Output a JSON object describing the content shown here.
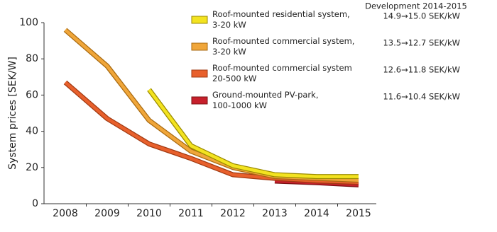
{
  "chart_data": {
    "type": "line",
    "y_label": "System prices [SEK/W]",
    "legend_header": "Development 2014-2015",
    "categories": [
      "2008",
      "2009",
      "2010",
      "2011",
      "2012",
      "2013",
      "2014",
      "2015"
    ],
    "ylim": [
      0,
      100
    ],
    "yticks": [
      0,
      20,
      40,
      60,
      80,
      100
    ],
    "grid": false,
    "series": [
      {
        "name": "Roof-mounted residential system,\n3-20 kW",
        "note": "14.9→15.0 SEK/kW",
        "color": "#f3e320",
        "edge": "#9a8a00",
        "values": [
          null,
          null,
          63,
          32,
          21,
          16,
          15,
          15
        ]
      },
      {
        "name": "Roof-mounted commercial system,\n3-20 kW",
        "note": "13.5→12.7 SEK/kW",
        "color": "#f0a63a",
        "edge": "#a86a10",
        "values": [
          96,
          76,
          46,
          29,
          20,
          15,
          14,
          13
        ]
      },
      {
        "name": "Roof-mounted commercial system\n20-500 kW",
        "note": "12.6→11.8 SEK/kW",
        "color": "#e8602c",
        "edge": "#a03a12",
        "values": [
          67,
          47,
          33,
          25,
          16,
          14,
          12.6,
          11.8
        ]
      },
      {
        "name": "Ground-mounted PV-park,\n100-1000 kW",
        "note": "11.6→10.4 SEK/kW",
        "color": "#c7202c",
        "edge": "#7a1010",
        "values": [
          null,
          null,
          null,
          null,
          null,
          12.5,
          11.6,
          10.4
        ]
      }
    ]
  }
}
